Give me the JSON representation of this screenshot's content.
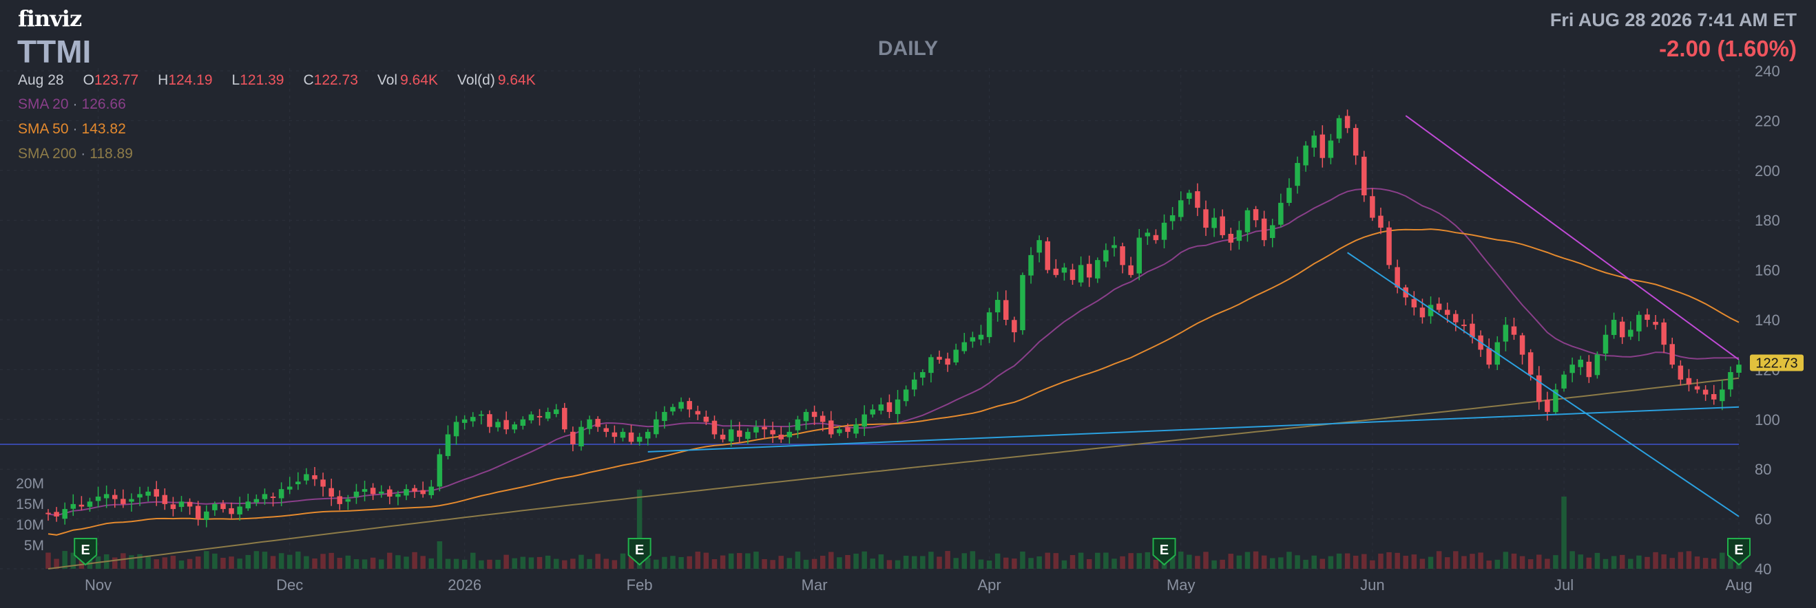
{
  "brand": "finviz",
  "ticker": "TTMI",
  "timeframe": "DAILY",
  "datetime": "Fri AUG 28 2026 7:41 AM ET",
  "change": "-2.00 (1.60%)",
  "ohlc": {
    "date": "Aug 28",
    "o_label": "O",
    "o": "123.77",
    "h_label": "H",
    "h": "124.19",
    "l_label": "L",
    "l": "121.39",
    "c_label": "C",
    "c": "122.73",
    "vol_label": "Vol",
    "vol": "9.64K",
    "vold_label": "Vol(d)",
    "vold": "9.64K"
  },
  "sma": [
    {
      "label": "SMA 20",
      "value": "126.66",
      "color": "#8a3f8a"
    },
    {
      "label": "SMA 50",
      "value": "143.82",
      "color": "#e58a2e"
    },
    {
      "label": "SMA 200",
      "value": "118.89",
      "color": "#8e7c48"
    }
  ],
  "colors": {
    "up": "#22b24c",
    "down": "#f0555e",
    "upVol": "#1d5a37",
    "downVol": "#6b2b33",
    "trendMagenta": "#c04ad6",
    "trendBlue": "#2ba1e0",
    "hline": "#3848a8",
    "grid": "#2c313c",
    "axisText": "#8a91a0",
    "priceTag": "#e2c13d"
  },
  "chart_data": {
    "type": "candlestick",
    "y_ticks": [
      "240",
      "220",
      "200",
      "180",
      "160",
      "140",
      "120",
      "100",
      "80",
      "60",
      "40"
    ],
    "ylim": [
      40,
      240
    ],
    "volume_ticks": [
      "20M",
      "15M",
      "10M",
      "5M"
    ],
    "x_labels": [
      "Nov",
      "Dec",
      "2026",
      "Feb",
      "Mar",
      "Apr",
      "May",
      "Jun",
      "Jul",
      "Aug"
    ],
    "earnings_label": "E",
    "earnings_months": [
      "Nov",
      "Feb",
      "May",
      "Aug"
    ],
    "last_price": "122.73",
    "horizontal_line": 90,
    "trendlines": [
      {
        "color": "magenta",
        "from": {
          "date": "Jun 22",
          "price": 222
        },
        "to": {
          "date": "Aug 28",
          "price": 124
        }
      },
      {
        "color": "blue",
        "from": {
          "date": "Jun 8",
          "price": 167
        },
        "to": {
          "date": "Aug 28",
          "price": 61
        }
      },
      {
        "color": "blue",
        "from": {
          "date": "Feb 3",
          "price": 87
        },
        "to": {
          "date": "Aug 28",
          "price": 105
        }
      }
    ],
    "closes": [
      62,
      61,
      64,
      66,
      65,
      67,
      69,
      70,
      68,
      66,
      68,
      70,
      71,
      69,
      66,
      64,
      67,
      65,
      60,
      63,
      66,
      64,
      62,
      65,
      67,
      68,
      70,
      69,
      72,
      73,
      75,
      78,
      76,
      73,
      69,
      66,
      68,
      71,
      72,
      70,
      71,
      69,
      70,
      72,
      71,
      70,
      73,
      86,
      94,
      99,
      100,
      101,
      102,
      97,
      99,
      96,
      98,
      100,
      102,
      101,
      103,
      104,
      96,
      90,
      97,
      100,
      97,
      95,
      93,
      95,
      91,
      93,
      95,
      100,
      103,
      105,
      107,
      104,
      102,
      99,
      94,
      92,
      96,
      93,
      95,
      97,
      96,
      94,
      92,
      95,
      100,
      103,
      101,
      99,
      94,
      96,
      95,
      98,
      102,
      104,
      106,
      103,
      108,
      112,
      116,
      119,
      125,
      124,
      122,
      128,
      131,
      133,
      134,
      143,
      148,
      140,
      135,
      158,
      166,
      172,
      160,
      158,
      161,
      156,
      162,
      157,
      164,
      168,
      170,
      162,
      158,
      173,
      175,
      172,
      179,
      182,
      188,
      191,
      185,
      177,
      181,
      174,
      171,
      176,
      184,
      180,
      172,
      178,
      187,
      193,
      203,
      210,
      214,
      205,
      212,
      221,
      217,
      206,
      190,
      181,
      177,
      162,
      153,
      149,
      145,
      141,
      146,
      144,
      142,
      139,
      138,
      133,
      128,
      122,
      131,
      138,
      134,
      126,
      118,
      107,
      103,
      112,
      118,
      122,
      124,
      117,
      126,
      134,
      140,
      133,
      136,
      142,
      140,
      138,
      130,
      122,
      116,
      114,
      112,
      110,
      108,
      112,
      119,
      122
    ]
  }
}
